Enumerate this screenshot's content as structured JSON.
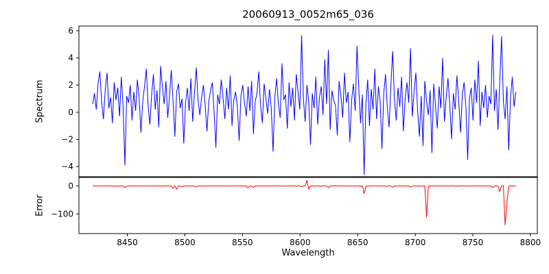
{
  "figure": {
    "title": "20060913_0052m65_036",
    "xlabel": "Wavelength"
  },
  "chart_data": {
    "type": "line",
    "title": "20060913_0052m65_036",
    "xlabel": "Wavelength",
    "xlim": [
      8408,
      8806
    ],
    "xticks": [
      8450,
      8500,
      8550,
      8600,
      8650,
      8700,
      8750,
      8800
    ],
    "x_start": 8420,
    "x_step": 1.55,
    "grid": false,
    "legend": false,
    "panels": [
      {
        "name": "spectrum",
        "ylabel": "Spectrum",
        "color": "#0000ff",
        "ylim": [
          -4.75,
          6.35
        ],
        "yticks": [
          -4,
          -2,
          0,
          2,
          4,
          6
        ],
        "values": [
          0.6,
          1.4,
          0.2,
          2.1,
          3.0,
          0.8,
          -0.5,
          1.7,
          2.9,
          0.3,
          1.1,
          -0.8,
          2.2,
          0.9,
          1.8,
          -0.3,
          2.6,
          0.4,
          -3.9,
          1.2,
          0.7,
          2.0,
          -0.6,
          1.5,
          0.1,
          2.4,
          1.0,
          -1.5,
          0.8,
          1.9,
          3.2,
          0.5,
          -0.9,
          1.3,
          2.8,
          0.2,
          1.6,
          -1.1,
          3.4,
          1.9,
          0.6,
          2.3,
          -0.4,
          1.2,
          3.1,
          0.8,
          -1.8,
          1.5,
          2.1,
          0.3,
          1.0,
          -2.3,
          0.7,
          1.8,
          0.1,
          2.5,
          -0.7,
          1.4,
          3.3,
          0.9,
          -0.2,
          1.1,
          2.0,
          0.5,
          -1.4,
          0.8,
          1.6,
          2.2,
          0.0,
          -2.6,
          1.3,
          0.6,
          2.4,
          1.0,
          -0.5,
          1.8,
          0.2,
          2.7,
          -1.0,
          0.9,
          1.5,
          0.4,
          -2.1,
          1.2,
          2.0,
          0.7,
          -0.3,
          1.9,
          0.1,
          2.3,
          -1.6,
          0.8,
          1.4,
          3.0,
          0.5,
          -0.8,
          2.1,
          1.0,
          -0.1,
          1.7,
          0.3,
          -2.9,
          1.1,
          2.5,
          0.6,
          -0.4,
          3.6,
          0.9,
          1.3,
          -1.2,
          2.2,
          0.4,
          1.8,
          -0.6,
          2.8,
          1.5,
          0.2,
          5.65,
          1.0,
          -0.7,
          2.0,
          0.8,
          -2.4,
          1.4,
          0.3,
          2.6,
          -0.9,
          1.1,
          1.9,
          -0.2,
          3.9,
          0.6,
          4.6,
          -1.3,
          1.6,
          0.9,
          0.5,
          -1.7,
          2.3,
          1.2,
          -0.4,
          2.9,
          0.7,
          1.5,
          -2.2,
          0.9,
          2.1,
          0.1,
          4.9,
          1.8,
          -0.8,
          1.3,
          -4.6,
          0.6,
          2.4,
          -1.0,
          1.7,
          0.2,
          3.2,
          -0.5,
          1.9,
          0.8,
          -2.7,
          1.4,
          2.8,
          0.3,
          -1.1,
          2.0,
          4.5,
          0.9,
          -0.6,
          1.8,
          0.4,
          2.6,
          -1.4,
          1.0,
          2.2,
          0.7,
          4.7,
          -0.3,
          1.5,
          2.9,
          0.1,
          -1.8,
          1.2,
          -2.5,
          2.3,
          0.8,
          -0.2,
          1.6,
          -3.0,
          2.1,
          0.5,
          -1.2,
          1.9,
          0.3,
          4.0,
          -0.7,
          1.1,
          2.5,
          0.6,
          -2.0,
          1.4,
          0.2,
          2.7,
          0.9,
          -1.5,
          1.3,
          2.2,
          0.4,
          -3.5,
          1.0,
          1.8,
          -0.6,
          2.4,
          0.7,
          3.8,
          -1.0,
          1.5,
          0.3,
          2.0,
          -0.4,
          1.2,
          0.6,
          5.7,
          0.1,
          1.7,
          -1.3,
          2.3,
          5.6,
          0.8,
          -0.5,
          1.9,
          -2.8,
          1.1,
          2.6,
          0.4,
          1.5
        ]
      },
      {
        "name": "error",
        "ylabel": "Error",
        "color": "#ff0000",
        "ylim": [
          -170,
          30
        ],
        "yticks": [
          0,
          -100
        ],
        "values": [
          0,
          -0.5,
          -1,
          0,
          -0.5,
          0,
          -1,
          -0.5,
          0,
          -1,
          0,
          -0.5,
          -1,
          0,
          -0.5,
          -1,
          0,
          -0.5,
          -6,
          -1,
          0,
          -0.5,
          0,
          -1,
          0,
          -0.5,
          -1,
          0,
          -0.5,
          0,
          -1,
          -0.5,
          0,
          -1,
          0,
          -0.5,
          -1,
          0,
          -0.5,
          -1,
          0,
          -0.5,
          0,
          -1,
          -0.5,
          -9,
          0,
          -12,
          -0.5,
          -1,
          -3,
          0,
          -0.5,
          -1,
          0,
          -0.5,
          0,
          -1,
          -4,
          -0.5,
          0,
          -1,
          -0.5,
          0,
          -1,
          0,
          -0.5,
          -1,
          0,
          -0.5,
          0,
          -1,
          -0.5,
          0,
          -1,
          0,
          -0.5,
          -1,
          0,
          -0.5,
          -1,
          0,
          -0.5,
          0,
          -1,
          -0.5,
          0,
          -7,
          -1,
          -0.5,
          -5,
          0,
          -1,
          -0.5,
          0,
          -1,
          0,
          -0.5,
          -1,
          0,
          -0.5,
          -1,
          0,
          -0.5,
          0,
          -1,
          -0.5,
          0,
          -1,
          -0.5,
          0,
          -1,
          0,
          -0.5,
          -1,
          0,
          -0.5,
          -3,
          0,
          -0.5,
          20,
          -12,
          -1,
          -0.5,
          0,
          -1,
          0,
          -0.5,
          -1,
          0,
          -0.5,
          0,
          -6,
          -0.5,
          -1,
          0,
          -0.5,
          -1,
          0,
          -0.5,
          0,
          -1,
          -0.5,
          0,
          -1,
          0,
          -0.5,
          -1,
          0,
          -0.5,
          -1,
          0,
          -28,
          -2,
          -0.5,
          -1,
          0,
          -0.5,
          0,
          -1,
          -0.5,
          0,
          -1,
          0,
          -0.5,
          -1,
          0,
          -0.5,
          -5,
          0,
          -0.5,
          -1,
          0,
          -0.5,
          0,
          -1,
          -0.5,
          0,
          -4,
          -1,
          0,
          -0.5,
          -1,
          0,
          -0.5,
          -1,
          0,
          -112,
          -0.5,
          -1,
          0,
          -0.5,
          0,
          -1,
          -0.5,
          0,
          -1,
          0,
          -0.5,
          -1,
          0,
          -0.5,
          0,
          -1,
          -0.5,
          -1,
          0,
          -0.5,
          0,
          -1,
          -0.5,
          0,
          -1,
          0,
          -0.5,
          -1,
          0,
          -0.5,
          -1,
          0,
          -0.5,
          0,
          -0.5,
          -1,
          -6,
          -0.5,
          0,
          -1,
          -20,
          -0.5,
          0,
          -140,
          -60,
          -1,
          -0.5,
          0,
          -1,
          -0.5
        ]
      }
    ]
  }
}
